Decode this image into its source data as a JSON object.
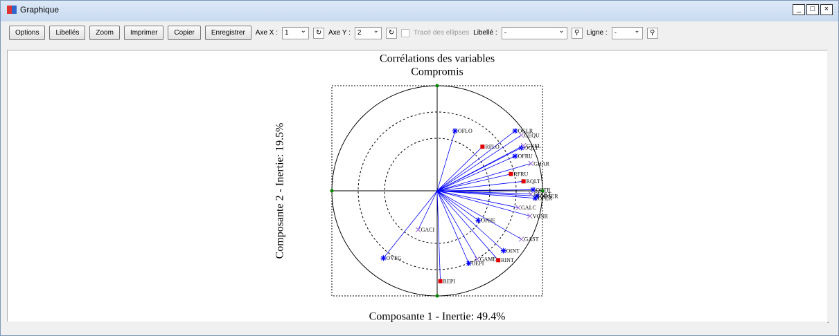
{
  "window": {
    "title": "Graphique"
  },
  "toolbar": {
    "buttons": [
      "Options",
      "Libellés",
      "Zoom",
      "Imprimer",
      "Copier",
      "Enregistrer"
    ],
    "axe_x_label": "Axe X :",
    "axe_x_value": "1",
    "axe_y_label": "Axe Y :",
    "axe_y_value": "2",
    "ellipses_label": "Tracé des ellipses",
    "libelle_label": "Libellé :",
    "libelle_value": "-",
    "ligne_label": "Ligne :",
    "ligne_value": "-"
  },
  "chart_data": {
    "type": "scatter",
    "title": "Corrélations des variables",
    "subtitle": "Compromis",
    "xlabel": "Composante 1 - Inertie:  49.4%",
    "ylabel": "Composante 2 - Inertie:  19.5%",
    "xlim": [
      -1,
      1
    ],
    "ylim": [
      -1,
      1
    ],
    "circles": [
      0.5,
      0.75,
      1
    ],
    "line_color": "#0000ff",
    "series": [
      {
        "marker": "star",
        "color": "#0000ff",
        "labels": [
          "OFLO",
          "OGLR",
          "OQLT",
          "OFRU",
          "OCTR",
          "ODSER",
          "OPER",
          "OPHE",
          "OINT",
          "OEPI",
          "OVEG"
        ],
        "x": [
          0.17,
          0.74,
          0.8,
          0.74,
          0.91,
          0.95,
          0.93,
          0.39,
          0.63,
          0.3,
          -0.51
        ],
        "y": [
          0.57,
          0.57,
          0.41,
          0.33,
          0.01,
          -0.05,
          -0.07,
          -0.28,
          -0.57,
          -0.69,
          -0.64
        ]
      },
      {
        "marker": "cross",
        "color": "#9966cc",
        "labels": [
          "GEQU",
          "GVEL",
          "GHAR",
          "GEQLT",
          "GALC",
          "VCNR",
          "GACI",
          "GAST",
          "GAME"
        ],
        "x": [
          0.8,
          0.82,
          0.89,
          0.89,
          0.77,
          0.88,
          -0.18,
          0.8,
          0.38
        ],
        "y": [
          0.53,
          0.43,
          0.26,
          -0.03,
          -0.16,
          -0.24,
          -0.37,
          -0.46,
          -0.65
        ]
      },
      {
        "marker": "square",
        "color": "#dd0000",
        "labels": [
          "RFLO",
          "RFRU",
          "RQLT",
          "RINT",
          "REPI"
        ],
        "x": [
          0.43,
          0.7,
          0.82,
          0.58,
          0.03
        ],
        "y": [
          0.42,
          0.16,
          0.09,
          -0.66,
          -0.86
        ]
      }
    ]
  }
}
